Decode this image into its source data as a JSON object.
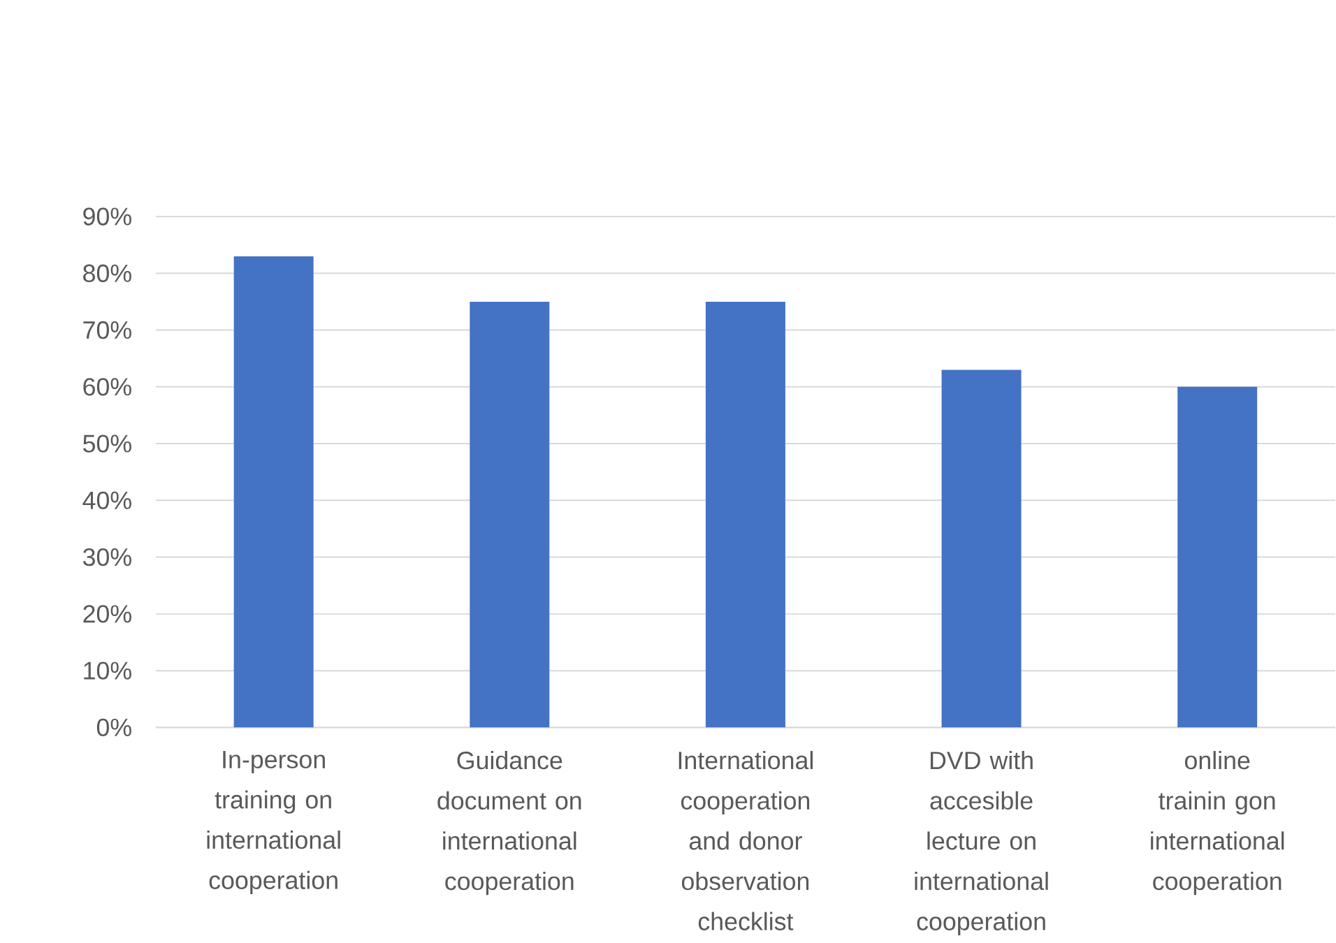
{
  "chart_data": {
    "type": "bar",
    "categories": [
      "In-person training on international cooperation",
      "Guidance document on international cooperation",
      "International cooperation and donor observation checklist",
      "DVD with accesible lecture on international cooperation",
      "online trainin gon international cooperation"
    ],
    "values": [
      83,
      75,
      75,
      63,
      60
    ],
    "color": "#4472c4",
    "ylim": [
      0,
      90
    ],
    "yticks": [
      {
        "value": 0,
        "label": "0%"
      },
      {
        "value": 10,
        "label": "10%"
      },
      {
        "value": 20,
        "label": "20%"
      },
      {
        "value": 30,
        "label": "30%"
      },
      {
        "value": 40,
        "label": "40%"
      },
      {
        "value": 50,
        "label": "50%"
      },
      {
        "value": 60,
        "label": "60%"
      },
      {
        "value": 70,
        "label": "70%"
      },
      {
        "value": 80,
        "label": "80%"
      },
      {
        "value": 90,
        "label": "90%"
      }
    ],
    "grid": "y"
  }
}
